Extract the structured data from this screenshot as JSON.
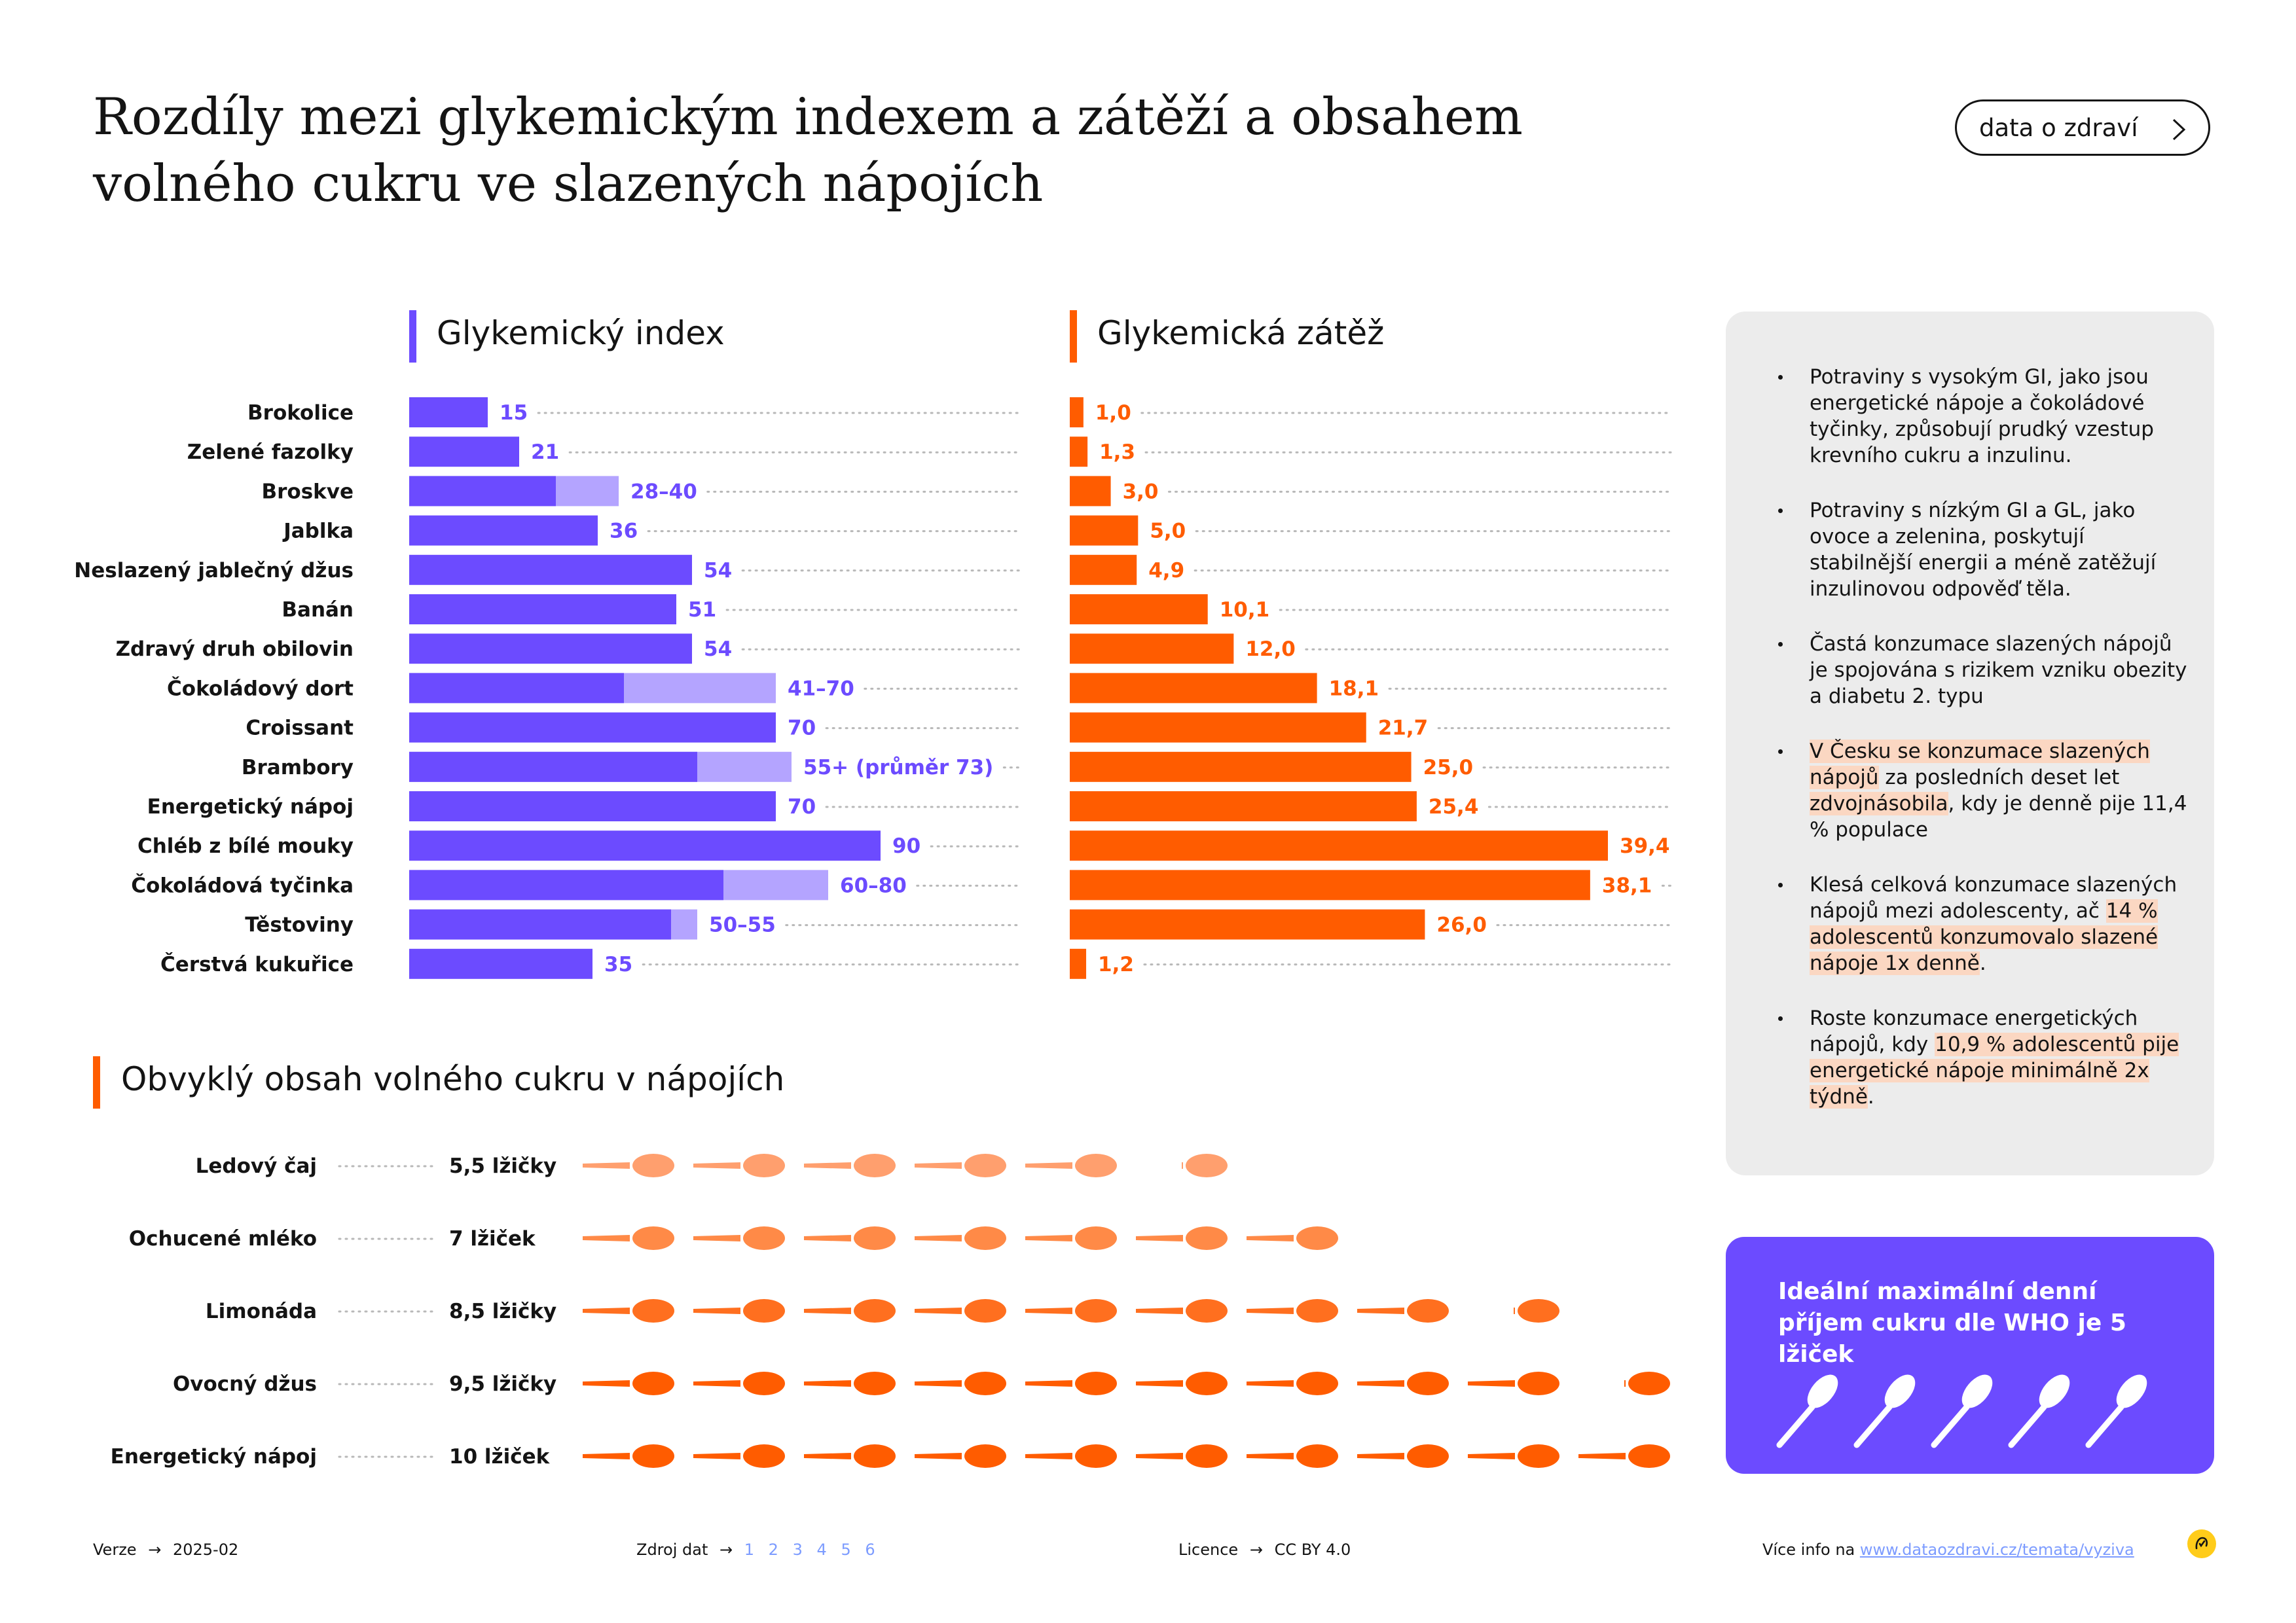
{
  "title_lines": [
    "Rozdíly mezi glykemickým indexem a zátěží a obsahem",
    "volného cukru ve slazených nápojích"
  ],
  "tag_button": {
    "label": "data o zdraví",
    "icon": "chevron-right-icon"
  },
  "colors": {
    "purple": "#6c4bff",
    "purple_light": "#b4a4ff",
    "orange": "#ff5c00",
    "orange_light": "#ff9f6e",
    "orange_mid": "#ff8a47",
    "highlight": "#fbd7c2"
  },
  "chart_data": [
    {
      "type": "bar",
      "orientation": "horizontal",
      "title": "Glykemický index",
      "categories": [
        "Brokolice",
        "Zelené fazolky",
        "Broskve",
        "Jablka",
        "Neslazený jablečný džus",
        "Banán",
        "Zdravý druh obilovin",
        "Čokoládový dort",
        "Croissant",
        "Brambory",
        "Energetický nápoj",
        "Chléb z bílé mouky",
        "Čokoládová tyčinka",
        "Těstoviny",
        "Čerstvá kukuřice"
      ],
      "series": [
        {
          "values": [
            15,
            21,
            28,
            36,
            54,
            51,
            54,
            41,
            70,
            55,
            70,
            90,
            60,
            50,
            35
          ]
        },
        {
          "values": [
            15,
            21,
            40,
            36,
            54,
            51,
            54,
            70,
            70,
            73,
            70,
            90,
            80,
            55,
            35
          ]
        }
      ],
      "data_labels": [
        "15",
        "21",
        "28–40",
        "36",
        "54",
        "51",
        "54",
        "41–70",
        "70",
        "55+ (průměr 73)",
        "70",
        "90",
        "60–80",
        "50–55",
        "35"
      ],
      "xlim": [
        0,
        100
      ]
    },
    {
      "type": "bar",
      "orientation": "horizontal",
      "title": "Glykemická zátěž",
      "categories": [
        "Brokolice",
        "Zelené fazolky",
        "Broskve",
        "Jablka",
        "Neslazený jablečný džus",
        "Banán",
        "Zdravý druh obilovin",
        "Čokoládový dort",
        "Croissant",
        "Brambory",
        "Energetický nápoj",
        "Chléb z bílé mouky",
        "Čokoládová tyčinka",
        "Těstoviny",
        "Čerstvá kukuřice"
      ],
      "values": [
        1.0,
        1.3,
        3.0,
        5.0,
        4.9,
        10.1,
        12.0,
        18.1,
        21.7,
        25.0,
        25.4,
        39.4,
        38.1,
        26.0,
        1.2
      ],
      "data_labels": [
        "1,0",
        "1,3",
        "3,0",
        "5,0",
        "4,9",
        "10,1",
        "12,0",
        "18,1",
        "21,7",
        "25,0",
        "25,4",
        "39,4",
        "38,1",
        "26,0",
        "1,2"
      ],
      "xlim": [
        0,
        40
      ]
    },
    {
      "type": "bar",
      "orientation": "horizontal",
      "title": "Obvyklý obsah volného cukru v nápojích",
      "categories": [
        "Ledový čaj",
        "Ochucené mléko",
        "Limonáda",
        "Ovocný džus",
        "Energetický nápoj"
      ],
      "values": [
        5.5,
        7,
        8.5,
        9.5,
        10
      ],
      "data_labels": [
        "5,5 lžičky",
        "7 lžiček",
        "8,5 lžičky",
        "9,5 lžičky",
        "10 lžiček"
      ],
      "unit_icon": "spoon-icon",
      "row_colors": [
        "#ff9f6e",
        "#ff8a47",
        "#ff6f1f",
        "#ff5c00",
        "#ff5c00"
      ]
    }
  ],
  "info_items": [
    [
      {
        "t": "Potraviny s vysokým GI, jako jsou energetické nápoje a čokoládové tyčinky, způsobují prudký vzestup krevního cukru a inzulinu."
      }
    ],
    [
      {
        "t": "Potraviny s nízkým GI a GL, jako ovoce a zelenina, poskytují stabilnější energii a méně zatěžují inzulinovou odpověď těla."
      }
    ],
    [
      {
        "t": "Častá konzumace slazených nápojů je spojována s rizikem vzniku obezity a diabetu 2. typu"
      }
    ],
    [
      {
        "t": "V Česku se konzumace slazených nápojů",
        "h": true
      },
      {
        "t": " za posledních deset let "
      },
      {
        "t": "zdvojnásobila",
        "h": true
      },
      {
        "t": ", kdy je denně pije 11,4 % populace"
      }
    ],
    [
      {
        "t": "Klesá celková konzumace slazených nápojů mezi adolescenty, ač "
      },
      {
        "t": "14 % adolescentů konzumovalo slazené nápoje 1x denně",
        "h": true
      },
      {
        "t": "."
      }
    ],
    [
      {
        "t": "Roste konzumace energetických nápojů, kdy "
      },
      {
        "t": "10,9 % adolescentů pije energetické nápoje minimálně 2x týdně",
        "h": true
      },
      {
        "t": "."
      }
    ]
  ],
  "who_box": {
    "text": "Ideální maximální denní příjem cukru dle WHO je 5 lžiček",
    "spoon_count": 5,
    "icon": "spoon-icon"
  },
  "footer": {
    "version_label": "Verze",
    "version": "2025-02",
    "source_label": "Zdroj dat",
    "source_links": [
      "1",
      "2",
      "3",
      "4",
      "5",
      "6"
    ],
    "license_label": "Licence",
    "license": "CC BY 4.0",
    "more_label": "Více info na",
    "more_url": "www.dataozdravi.cz/temata/vyziva",
    "arrow": "→",
    "brand_icon": "sticker-icon"
  }
}
